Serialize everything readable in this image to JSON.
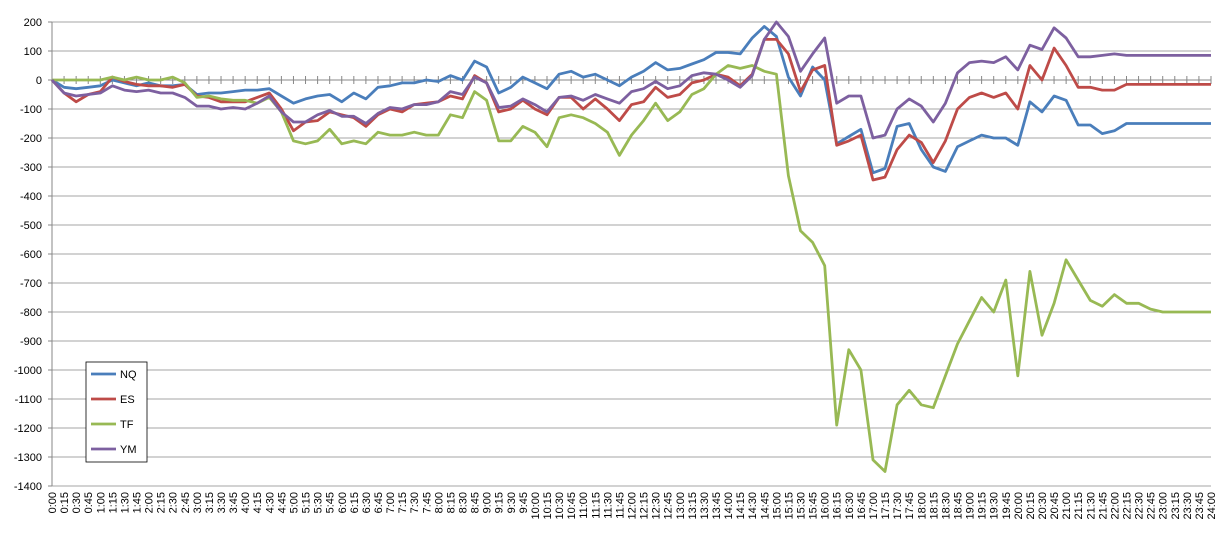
{
  "chart_data": {
    "type": "line",
    "categories": [
      "0:00",
      "0:15",
      "0:30",
      "0:45",
      "1:00",
      "1:15",
      "1:30",
      "1:45",
      "2:00",
      "2:15",
      "2:30",
      "2:45",
      "3:00",
      "3:15",
      "3:30",
      "3:45",
      "4:00",
      "4:15",
      "4:30",
      "4:45",
      "5:00",
      "5:15",
      "5:30",
      "5:45",
      "6:00",
      "6:15",
      "6:30",
      "6:45",
      "7:00",
      "7:15",
      "7:30",
      "7:45",
      "8:00",
      "8:15",
      "8:30",
      "8:45",
      "9:00",
      "9:15",
      "9:30",
      "9:45",
      "10:00",
      "10:15",
      "10:30",
      "10:45",
      "11:00",
      "11:15",
      "11:30",
      "11:45",
      "12:00",
      "12:15",
      "12:30",
      "12:45",
      "13:00",
      "13:15",
      "13:30",
      "13:45",
      "14:00",
      "14:15",
      "14:30",
      "14:45",
      "15:00",
      "15:15",
      "15:30",
      "15:45",
      "16:00",
      "16:15",
      "16:30",
      "16:45",
      "17:00",
      "17:15",
      "17:30",
      "17:45",
      "18:00",
      "18:15",
      "18:30",
      "18:45",
      "19:00",
      "19:15",
      "19:30",
      "19:45",
      "20:00",
      "20:15",
      "20:30",
      "20:45",
      "21:00",
      "21:15",
      "21:30",
      "21:45",
      "22:00",
      "22:15",
      "22:30",
      "22:45",
      "23:00",
      "23:15",
      "23:30",
      "23:45",
      "24:00"
    ],
    "series": [
      {
        "name": "NQ",
        "color": "#4a7ebb",
        "values": [
          0,
          -25,
          -30,
          -25,
          -20,
          0,
          -10,
          -20,
          -10,
          -20,
          -20,
          -15,
          -50,
          -45,
          -45,
          -40,
          -35,
          -35,
          -30,
          -55,
          -80,
          -65,
          -55,
          -50,
          -75,
          -45,
          -65,
          -25,
          -20,
          -10,
          -10,
          0,
          -5,
          15,
          0,
          65,
          45,
          -45,
          -25,
          10,
          -10,
          -30,
          20,
          30,
          10,
          20,
          0,
          -20,
          10,
          30,
          60,
          35,
          40,
          55,
          70,
          95,
          95,
          90,
          145,
          185,
          150,
          10,
          -55,
          45,
          0,
          -220,
          -195,
          -170,
          -320,
          -305,
          -160,
          -150,
          -240,
          -300,
          -315,
          -230,
          -210,
          -190,
          -200,
          -200,
          -225,
          -75,
          -110,
          -55,
          -70,
          -155,
          -155,
          -185,
          -175,
          -150,
          -150,
          -150,
          -150,
          -150,
          -150,
          -150,
          -150
        ]
      },
      {
        "name": "ES",
        "color": "#be4b48",
        "values": [
          0,
          -45,
          -75,
          -50,
          -40,
          10,
          -5,
          -15,
          -20,
          -20,
          -25,
          -15,
          -55,
          -60,
          -75,
          -75,
          -75,
          -60,
          -45,
          -100,
          -175,
          -145,
          -140,
          -110,
          -120,
          -130,
          -160,
          -120,
          -100,
          -110,
          -85,
          -80,
          -75,
          -55,
          -65,
          15,
          -10,
          -110,
          -100,
          -70,
          -100,
          -120,
          -60,
          -60,
          -100,
          -65,
          -100,
          -140,
          -85,
          -75,
          -25,
          -60,
          -50,
          -10,
          0,
          20,
          10,
          -20,
          20,
          140,
          140,
          90,
          -40,
          35,
          50,
          -225,
          -210,
          -190,
          -345,
          -335,
          -240,
          -190,
          -215,
          -285,
          -210,
          -100,
          -60,
          -45,
          -60,
          -45,
          -100,
          50,
          0,
          110,
          50,
          -25,
          -25,
          -35,
          -35,
          -15,
          -15,
          -15,
          -15,
          -15,
          -15,
          -15,
          -15
        ]
      },
      {
        "name": "TF",
        "color": "#98b954",
        "values": [
          0,
          0,
          0,
          0,
          0,
          10,
          0,
          10,
          0,
          0,
          10,
          -10,
          -60,
          -55,
          -65,
          -70,
          -70,
          -80,
          -60,
          -110,
          -210,
          -220,
          -210,
          -170,
          -220,
          -210,
          -220,
          -180,
          -190,
          -190,
          -180,
          -190,
          -190,
          -120,
          -130,
          -40,
          -70,
          -210,
          -210,
          -160,
          -180,
          -230,
          -130,
          -120,
          -130,
          -150,
          -180,
          -260,
          -190,
          -140,
          -80,
          -140,
          -110,
          -50,
          -30,
          20,
          50,
          40,
          50,
          30,
          20,
          -330,
          -520,
          -560,
          -640,
          -1190,
          -930,
          -1000,
          -1310,
          -1350,
          -1120,
          -1070,
          -1120,
          -1130,
          -1020,
          -910,
          -830,
          -750,
          -800,
          -690,
          -1020,
          -660,
          -880,
          -770,
          -620,
          -690,
          -760,
          -780,
          -740,
          -770,
          -770,
          -790,
          -800,
          -800,
          -800,
          -800,
          -800
        ]
      },
      {
        "name": "YM",
        "color": "#7d60a0",
        "values": [
          0,
          -45,
          -55,
          -50,
          -45,
          -20,
          -35,
          -40,
          -35,
          -45,
          -45,
          -60,
          -90,
          -90,
          -100,
          -95,
          -100,
          -80,
          -55,
          -110,
          -145,
          -145,
          -120,
          -105,
          -125,
          -125,
          -150,
          -115,
          -95,
          -100,
          -85,
          -85,
          -75,
          -40,
          -50,
          10,
          -10,
          -95,
          -90,
          -65,
          -85,
          -110,
          -60,
          -55,
          -70,
          -50,
          -65,
          -80,
          -40,
          -30,
          -5,
          -30,
          -20,
          15,
          25,
          20,
          0,
          -25,
          15,
          140,
          200,
          150,
          30,
          90,
          145,
          -80,
          -55,
          -55,
          -200,
          -190,
          -100,
          -65,
          -90,
          -145,
          -80,
          25,
          60,
          65,
          60,
          80,
          35,
          120,
          105,
          180,
          145,
          80,
          80,
          85,
          90,
          85,
          85,
          85,
          85,
          85,
          85,
          85,
          85
        ]
      }
    ],
    "ylim": [
      -1400,
      200
    ],
    "yticks": [
      -1400,
      -1300,
      -1200,
      -1100,
      -1000,
      -900,
      -800,
      -700,
      -600,
      -500,
      -400,
      -300,
      -200,
      -100,
      0,
      100,
      200
    ],
    "grid": true,
    "legend": "bottom-left"
  }
}
